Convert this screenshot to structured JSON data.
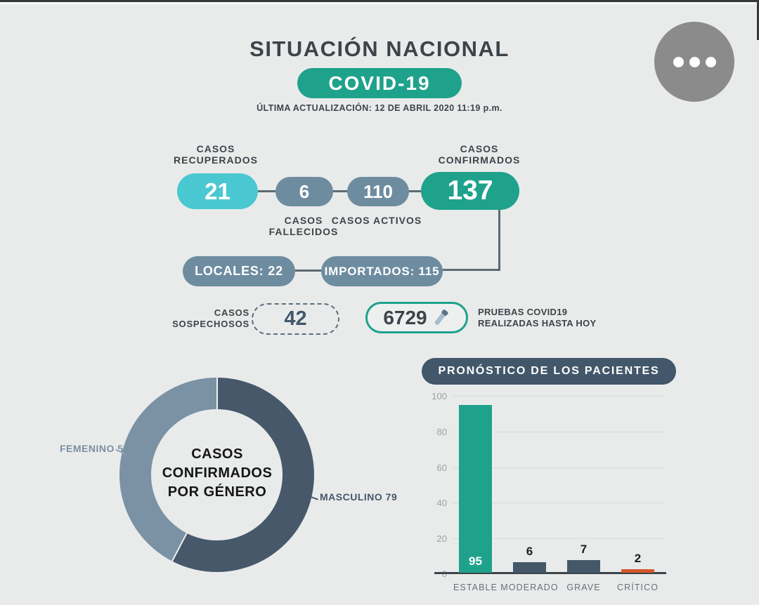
{
  "page": {
    "title": "SITUACIÓN NACIONAL",
    "badge": "COVID-19",
    "last_update": "ÚLTIMA ACTUALIZACIÓN: 12 DE ABRIL 2020 11:19 p.m."
  },
  "menu": {
    "icon": "ellipsis-icon"
  },
  "colors": {
    "background": "#e9ebeb",
    "teal": "#1fa28c",
    "cyan": "#4ac8d1",
    "blue_gray": "#6d8ca0",
    "dark_slate": "#42576a",
    "orange": "#d4562b",
    "text_dark": "#3d4449"
  },
  "flow": {
    "recovered": {
      "label": "CASOS RECUPERADOS",
      "value": "21",
      "color": "#4ac8d1"
    },
    "deceased": {
      "label": "CASOS FALLECIDOS",
      "value": "6",
      "color": "#6d8ca0"
    },
    "active": {
      "label": "CASOS ACTIVOS",
      "value": "110",
      "color": "#6d8ca0"
    },
    "confirmed": {
      "label": "CASOS CONFIRMADOS",
      "value": "137",
      "color": "#1fa28c"
    },
    "local": {
      "label": "LOCALES: 22"
    },
    "imported": {
      "label": "IMPORTADOS: 115"
    },
    "suspected": {
      "label": "CASOS SOSPECHOSOS",
      "value": "42"
    },
    "tests": {
      "value": "6729",
      "icon": "test-tube-icon",
      "label": "PRUEBAS COVID19 REALIZADAS HASTA HOY"
    }
  },
  "chart_data": [
    {
      "type": "pie",
      "variant": "donut",
      "title": "CASOS CONFIRMADOS POR GÉNERO",
      "series": [
        {
          "label": "MASCULINO",
          "value": 79,
          "color": "#46586a",
          "callout": "MASCULINO 79"
        },
        {
          "label": "FEMENINO",
          "value": 58,
          "color": "#7a92a4",
          "callout": "FEMENINO 58"
        }
      ],
      "total": 137,
      "start_angle_deg": 0,
      "direction": "clockwise",
      "legend_position": "callouts"
    },
    {
      "type": "bar",
      "title": "PRONÓSTICO DE LOS PACIENTES",
      "categories": [
        "ESTABLE",
        "MODERADO",
        "GRAVE",
        "CRÍTICO"
      ],
      "values": [
        95,
        6,
        7,
        2
      ],
      "bar_colors": [
        "#1fa28c",
        "#44586a",
        "#44586a",
        "#d4562b"
      ],
      "xlabel": "",
      "ylabel": "",
      "ylim": [
        0,
        100
      ],
      "yticks": [
        "100",
        "80",
        "60",
        "40",
        "20",
        "0"
      ],
      "grid": true,
      "legend_position": "none"
    }
  ]
}
